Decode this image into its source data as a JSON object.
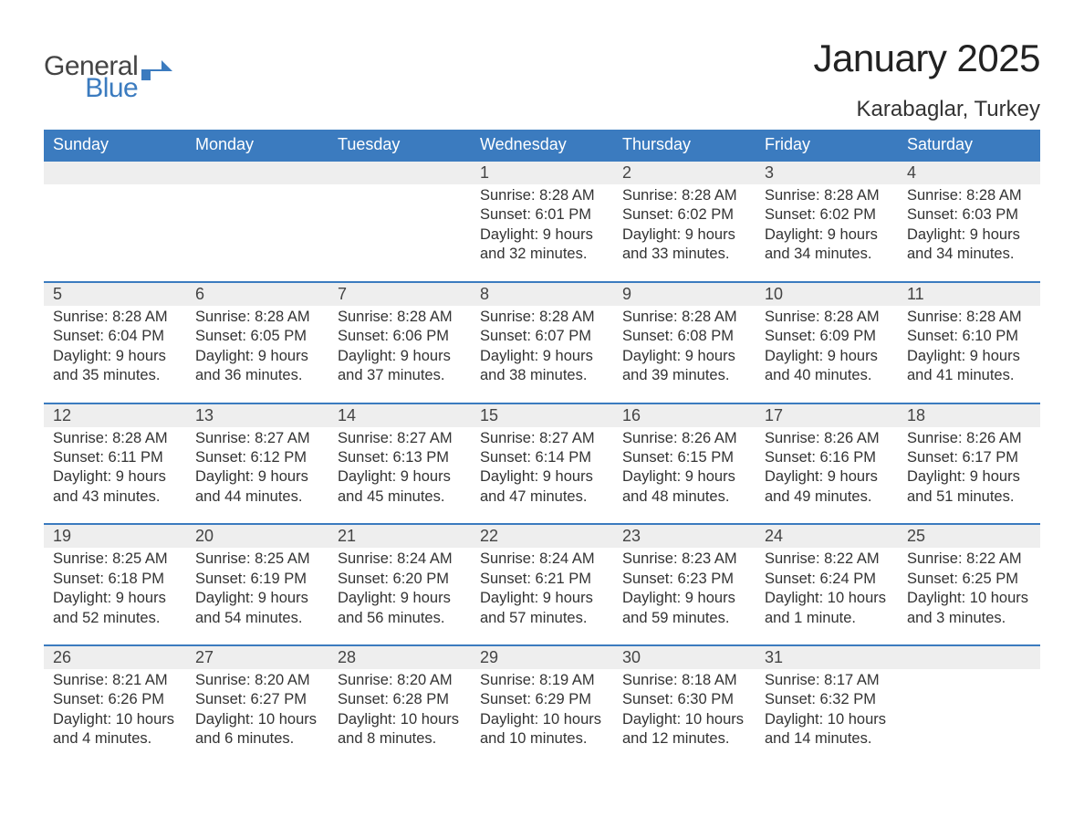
{
  "logo": {
    "line1": "General",
    "line2": "Blue",
    "flag_color": "#3b7bbf",
    "text_color": "#444444"
  },
  "title": "January 2025",
  "location": "Karabaglar, Turkey",
  "colors": {
    "header_bg": "#3b7bbf",
    "header_text": "#ffffff",
    "daynum_bg": "#eeeeee",
    "body_text": "#333333",
    "week_border": "#3b7bbf",
    "page_bg": "#ffffff"
  },
  "day_headers": [
    "Sunday",
    "Monday",
    "Tuesday",
    "Wednesday",
    "Thursday",
    "Friday",
    "Saturday"
  ],
  "weeks": [
    {
      "days": [
        {
          "num": "",
          "sunrise": "",
          "sunset": "",
          "daylight": ""
        },
        {
          "num": "",
          "sunrise": "",
          "sunset": "",
          "daylight": ""
        },
        {
          "num": "",
          "sunrise": "",
          "sunset": "",
          "daylight": ""
        },
        {
          "num": "1",
          "sunrise": "Sunrise: 8:28 AM",
          "sunset": "Sunset: 6:01 PM",
          "daylight": "Daylight: 9 hours and 32 minutes."
        },
        {
          "num": "2",
          "sunrise": "Sunrise: 8:28 AM",
          "sunset": "Sunset: 6:02 PM",
          "daylight": "Daylight: 9 hours and 33 minutes."
        },
        {
          "num": "3",
          "sunrise": "Sunrise: 8:28 AM",
          "sunset": "Sunset: 6:02 PM",
          "daylight": "Daylight: 9 hours and 34 minutes."
        },
        {
          "num": "4",
          "sunrise": "Sunrise: 8:28 AM",
          "sunset": "Sunset: 6:03 PM",
          "daylight": "Daylight: 9 hours and 34 minutes."
        }
      ]
    },
    {
      "days": [
        {
          "num": "5",
          "sunrise": "Sunrise: 8:28 AM",
          "sunset": "Sunset: 6:04 PM",
          "daylight": "Daylight: 9 hours and 35 minutes."
        },
        {
          "num": "6",
          "sunrise": "Sunrise: 8:28 AM",
          "sunset": "Sunset: 6:05 PM",
          "daylight": "Daylight: 9 hours and 36 minutes."
        },
        {
          "num": "7",
          "sunrise": "Sunrise: 8:28 AM",
          "sunset": "Sunset: 6:06 PM",
          "daylight": "Daylight: 9 hours and 37 minutes."
        },
        {
          "num": "8",
          "sunrise": "Sunrise: 8:28 AM",
          "sunset": "Sunset: 6:07 PM",
          "daylight": "Daylight: 9 hours and 38 minutes."
        },
        {
          "num": "9",
          "sunrise": "Sunrise: 8:28 AM",
          "sunset": "Sunset: 6:08 PM",
          "daylight": "Daylight: 9 hours and 39 minutes."
        },
        {
          "num": "10",
          "sunrise": "Sunrise: 8:28 AM",
          "sunset": "Sunset: 6:09 PM",
          "daylight": "Daylight: 9 hours and 40 minutes."
        },
        {
          "num": "11",
          "sunrise": "Sunrise: 8:28 AM",
          "sunset": "Sunset: 6:10 PM",
          "daylight": "Daylight: 9 hours and 41 minutes."
        }
      ]
    },
    {
      "days": [
        {
          "num": "12",
          "sunrise": "Sunrise: 8:28 AM",
          "sunset": "Sunset: 6:11 PM",
          "daylight": "Daylight: 9 hours and 43 minutes."
        },
        {
          "num": "13",
          "sunrise": "Sunrise: 8:27 AM",
          "sunset": "Sunset: 6:12 PM",
          "daylight": "Daylight: 9 hours and 44 minutes."
        },
        {
          "num": "14",
          "sunrise": "Sunrise: 8:27 AM",
          "sunset": "Sunset: 6:13 PM",
          "daylight": "Daylight: 9 hours and 45 minutes."
        },
        {
          "num": "15",
          "sunrise": "Sunrise: 8:27 AM",
          "sunset": "Sunset: 6:14 PM",
          "daylight": "Daylight: 9 hours and 47 minutes."
        },
        {
          "num": "16",
          "sunrise": "Sunrise: 8:26 AM",
          "sunset": "Sunset: 6:15 PM",
          "daylight": "Daylight: 9 hours and 48 minutes."
        },
        {
          "num": "17",
          "sunrise": "Sunrise: 8:26 AM",
          "sunset": "Sunset: 6:16 PM",
          "daylight": "Daylight: 9 hours and 49 minutes."
        },
        {
          "num": "18",
          "sunrise": "Sunrise: 8:26 AM",
          "sunset": "Sunset: 6:17 PM",
          "daylight": "Daylight: 9 hours and 51 minutes."
        }
      ]
    },
    {
      "days": [
        {
          "num": "19",
          "sunrise": "Sunrise: 8:25 AM",
          "sunset": "Sunset: 6:18 PM",
          "daylight": "Daylight: 9 hours and 52 minutes."
        },
        {
          "num": "20",
          "sunrise": "Sunrise: 8:25 AM",
          "sunset": "Sunset: 6:19 PM",
          "daylight": "Daylight: 9 hours and 54 minutes."
        },
        {
          "num": "21",
          "sunrise": "Sunrise: 8:24 AM",
          "sunset": "Sunset: 6:20 PM",
          "daylight": "Daylight: 9 hours and 56 minutes."
        },
        {
          "num": "22",
          "sunrise": "Sunrise: 8:24 AM",
          "sunset": "Sunset: 6:21 PM",
          "daylight": "Daylight: 9 hours and 57 minutes."
        },
        {
          "num": "23",
          "sunrise": "Sunrise: 8:23 AM",
          "sunset": "Sunset: 6:23 PM",
          "daylight": "Daylight: 9 hours and 59 minutes."
        },
        {
          "num": "24",
          "sunrise": "Sunrise: 8:22 AM",
          "sunset": "Sunset: 6:24 PM",
          "daylight": "Daylight: 10 hours and 1 minute."
        },
        {
          "num": "25",
          "sunrise": "Sunrise: 8:22 AM",
          "sunset": "Sunset: 6:25 PM",
          "daylight": "Daylight: 10 hours and 3 minutes."
        }
      ]
    },
    {
      "days": [
        {
          "num": "26",
          "sunrise": "Sunrise: 8:21 AM",
          "sunset": "Sunset: 6:26 PM",
          "daylight": "Daylight: 10 hours and 4 minutes."
        },
        {
          "num": "27",
          "sunrise": "Sunrise: 8:20 AM",
          "sunset": "Sunset: 6:27 PM",
          "daylight": "Daylight: 10 hours and 6 minutes."
        },
        {
          "num": "28",
          "sunrise": "Sunrise: 8:20 AM",
          "sunset": "Sunset: 6:28 PM",
          "daylight": "Daylight: 10 hours and 8 minutes."
        },
        {
          "num": "29",
          "sunrise": "Sunrise: 8:19 AM",
          "sunset": "Sunset: 6:29 PM",
          "daylight": "Daylight: 10 hours and 10 minutes."
        },
        {
          "num": "30",
          "sunrise": "Sunrise: 8:18 AM",
          "sunset": "Sunset: 6:30 PM",
          "daylight": "Daylight: 10 hours and 12 minutes."
        },
        {
          "num": "31",
          "sunrise": "Sunrise: 8:17 AM",
          "sunset": "Sunset: 6:32 PM",
          "daylight": "Daylight: 10 hours and 14 minutes."
        },
        {
          "num": "",
          "sunrise": "",
          "sunset": "",
          "daylight": ""
        }
      ]
    }
  ]
}
